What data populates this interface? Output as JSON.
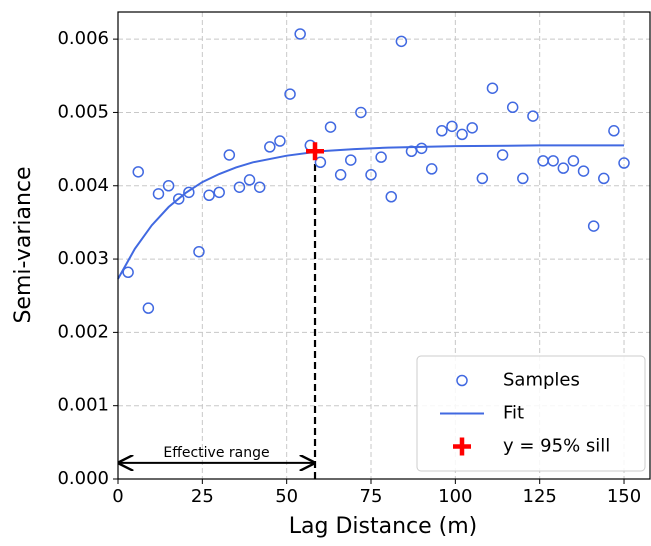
{
  "chart_data": {
    "type": "scatter",
    "xlabel": "Lag Distance (m)",
    "ylabel": "Semi-variance",
    "xlim": [
      0,
      157.7
    ],
    "ylim": [
      0,
      0.00637
    ],
    "xticks": [
      0,
      25,
      50,
      75,
      100,
      125,
      150
    ],
    "yticks": [
      {
        "value": 0,
        "label": "0.000"
      },
      0.001,
      0.002,
      0.003,
      0.004,
      0.005,
      0.006
    ],
    "grid": true,
    "legend_loc": "lower right",
    "series": [
      {
        "name": "Samples",
        "color": "#4169e1",
        "style": "circle",
        "x": [
          3,
          6,
          9,
          12,
          15,
          18,
          21,
          24,
          27,
          30,
          33,
          36,
          39,
          42,
          45,
          48,
          51,
          54,
          57,
          60,
          63,
          66,
          69,
          72,
          75,
          78,
          81,
          84,
          87,
          90,
          93,
          96,
          99,
          102,
          105,
          108,
          111,
          114,
          117,
          120,
          123,
          126,
          129,
          132,
          135,
          138,
          141,
          144,
          147,
          150
        ],
        "values": [
          0.00282,
          0.00419,
          0.00233,
          0.00389,
          0.004,
          0.00382,
          0.00391,
          0.0031,
          0.00387,
          0.00391,
          0.00442,
          0.00398,
          0.00408,
          0.00398,
          0.00453,
          0.00461,
          0.00525,
          0.00607,
          0.00455,
          0.00432,
          0.0048,
          0.00415,
          0.00435,
          0.005,
          0.00415,
          0.00439,
          0.00385,
          0.00597,
          0.00447,
          0.00451,
          0.00423,
          0.00475,
          0.00481,
          0.0047,
          0.00479,
          0.0041,
          0.00533,
          0.00442,
          0.00507,
          0.0041,
          0.00495,
          0.00434,
          0.00434,
          0.00424,
          0.00434,
          0.0042,
          0.00345,
          0.0041,
          0.00475,
          0.00431
        ]
      },
      {
        "name": "Fit",
        "color": "#4169e1",
        "style": "line",
        "x": [
          0,
          5,
          10,
          15,
          20,
          25,
          30,
          35,
          40,
          50,
          60,
          70,
          80,
          100,
          125,
          150
        ],
        "values": [
          0.00273,
          0.00314,
          0.00346,
          0.00371,
          0.0039,
          0.00405,
          0.00416,
          0.00425,
          0.00432,
          0.00441,
          0.00447,
          0.0045,
          0.00452,
          0.00454,
          0.00455,
          0.00455
        ]
      },
      {
        "name": "y = 95% sill",
        "color": "#ff0000",
        "style": "plus",
        "x": [
          58.4
        ],
        "values": [
          0.00447
        ]
      }
    ],
    "annotation": {
      "text": "Effective range",
      "x": [
        0,
        58.4
      ],
      "y": 0.00022
    }
  }
}
